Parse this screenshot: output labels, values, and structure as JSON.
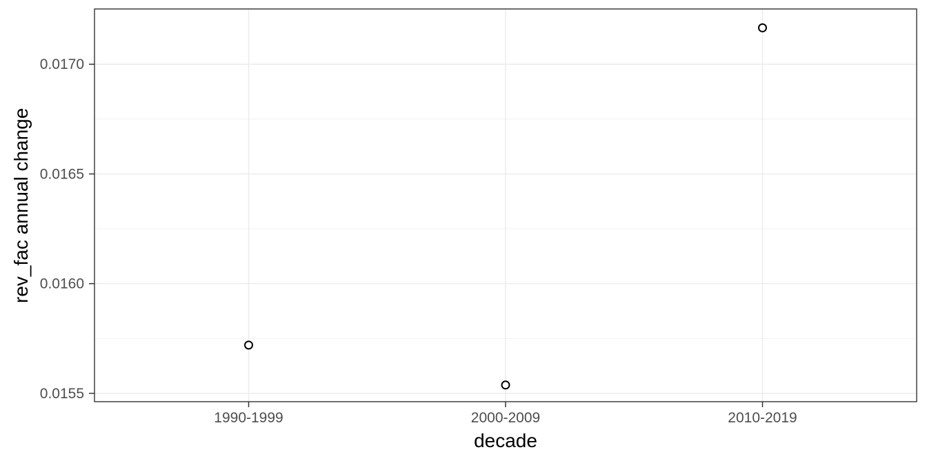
{
  "figure": {
    "background": "#FFFFFF"
  },
  "chart_data": {
    "type": "scatter",
    "title": "",
    "xlabel": "decade",
    "ylabel": "rev_fac annual change",
    "categories": [
      "1990-1999",
      "2000-2009",
      "2010-2019"
    ],
    "series": [
      {
        "name": "rev_fac annual change",
        "values": [
          0.01572,
          0.015538,
          0.017166
        ]
      }
    ],
    "y_ticks": [
      {
        "value": 0.0155,
        "label": "0.0155"
      },
      {
        "value": 0.016,
        "label": "0.0160"
      },
      {
        "value": 0.0165,
        "label": "0.0165"
      },
      {
        "value": 0.017,
        "label": "0.0170"
      }
    ],
    "y_minor_ticks": [
      0.01575,
      0.01625,
      0.01675,
      0.01725
    ],
    "ylim": [
      0.015462,
      0.017252
    ],
    "grid": {
      "horizontal_major": true,
      "horizontal_minor": true,
      "vertical_major": true,
      "vertical_minor": false
    },
    "legend": "none",
    "marker": "open-circle",
    "theme": {
      "panel_background": "#FFFFFF",
      "grid_color": "#EBEBEB",
      "grid_minor_color": "#F0F0F0",
      "panel_border_color": "#333333",
      "tick_color": "#333333",
      "tick_label_color": "#4D4D4D",
      "axis_title_color": "#000000",
      "point_color": "#000000"
    }
  }
}
